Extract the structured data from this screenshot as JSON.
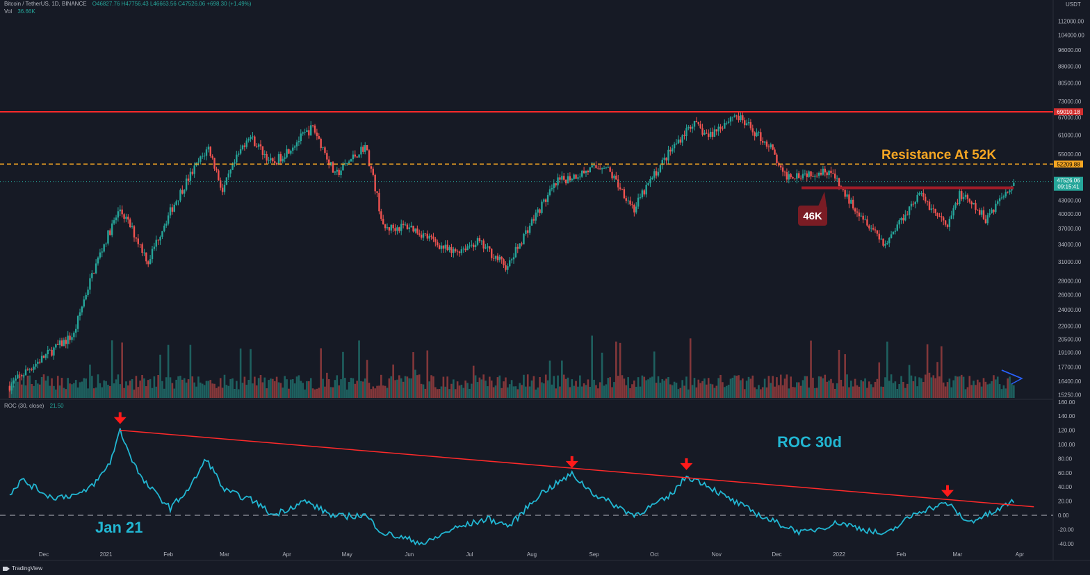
{
  "header": {
    "symbol": "Bitcoin / TetherUS, 1D, BINANCE",
    "ohlc": "O46827.76 H47756.43 L46663.56 C47526.06 +698.30 (+1.49%)",
    "vol_label": "Vol",
    "vol_value": "36.66K",
    "currency": "USDT",
    "roc_label": "ROC (30, close)",
    "roc_value": "21.50"
  },
  "branding": {
    "name": "TradingView"
  },
  "colors": {
    "background": "#161a25",
    "up": "#26a69a",
    "down": "#ef5350",
    "roc_line": "#22b7d3",
    "resistance": "#f5a623",
    "trendline": "#ff2a2a"
  },
  "annotations": {
    "resistance_text": "Resistance At 52K",
    "support_text": "46K",
    "roc_text": "ROC 30d",
    "jan_text": "Jan 21"
  },
  "price_tags": {
    "ath": "69010.18",
    "resistance": "52209.88",
    "current": "47526.06",
    "countdown": "09:15:41"
  },
  "price_axis": {
    "ticks": [
      {
        "label": "112000.00",
        "value": 112000
      },
      {
        "label": "104000.00",
        "value": 104000
      },
      {
        "label": "96000.00",
        "value": 96000
      },
      {
        "label": "88000.00",
        "value": 88000
      },
      {
        "label": "80500.00",
        "value": 80500
      },
      {
        "label": "73000.00",
        "value": 73000
      },
      {
        "label": "67000.00",
        "value": 67000
      },
      {
        "label": "61000.00",
        "value": 61000
      },
      {
        "label": "55000.00",
        "value": 55000
      },
      {
        "label": "43000.00",
        "value": 43000
      },
      {
        "label": "40000.00",
        "value": 40000
      },
      {
        "label": "37000.00",
        "value": 37000
      },
      {
        "label": "34000.00",
        "value": 34000
      },
      {
        "label": "31000.00",
        "value": 31000
      },
      {
        "label": "28000.00",
        "value": 28000
      },
      {
        "label": "26000.00",
        "value": 26000
      },
      {
        "label": "24000.00",
        "value": 24000
      },
      {
        "label": "22000.00",
        "value": 22000
      },
      {
        "label": "20500.00",
        "value": 20500
      },
      {
        "label": "19100.00",
        "value": 19100
      },
      {
        "label": "17700.00",
        "value": 17700
      },
      {
        "label": "16400.00",
        "value": 16400
      },
      {
        "label": "15250.00",
        "value": 15250
      }
    ]
  },
  "roc_axis": {
    "ticks": [
      "160.00",
      "140.00",
      "120.00",
      "100.00",
      "80.00",
      "60.00",
      "40.00",
      "20.00",
      "0.00",
      "-20.00",
      "-40.00"
    ]
  },
  "time_axis": {
    "labels": [
      "Dec",
      "2021",
      "Feb",
      "Mar",
      "Apr",
      "May",
      "Jun",
      "Jul",
      "Aug",
      "Sep",
      "Oct",
      "Nov",
      "Dec",
      "2022",
      "Feb",
      "Mar",
      "Apr"
    ]
  },
  "chart_data": [
    {
      "type": "candlestick",
      "title": "Bitcoin / TetherUS, 1D, BINANCE",
      "scale": "log",
      "ylim": [
        15250,
        115000
      ],
      "x_range": [
        "2020-11",
        "2022-03-29"
      ],
      "anchors": [
        {
          "date": "2020-11-14",
          "close": 16000
        },
        {
          "date": "2020-12-16",
          "close": 21000
        },
        {
          "date": "2021-01-08",
          "close": 41000
        },
        {
          "date": "2021-01-22",
          "close": 31000
        },
        {
          "date": "2021-02-21",
          "close": 57000
        },
        {
          "date": "2021-02-28",
          "close": 45000
        },
        {
          "date": "2021-03-13",
          "close": 61000
        },
        {
          "date": "2021-03-25",
          "close": 52000
        },
        {
          "date": "2021-04-14",
          "close": 63500
        },
        {
          "date": "2021-04-25",
          "close": 49000
        },
        {
          "date": "2021-05-10",
          "close": 57500
        },
        {
          "date": "2021-05-19",
          "close": 37000
        },
        {
          "date": "2021-06-01",
          "close": 37500
        },
        {
          "date": "2021-06-22",
          "close": 32500
        },
        {
          "date": "2021-07-05",
          "close": 34500
        },
        {
          "date": "2021-07-20",
          "close": 30000
        },
        {
          "date": "2021-08-14",
          "close": 47500
        },
        {
          "date": "2021-09-06",
          "close": 52000
        },
        {
          "date": "2021-09-21",
          "close": 41000
        },
        {
          "date": "2021-10-20",
          "close": 65000
        },
        {
          "date": "2021-10-28",
          "close": 60500
        },
        {
          "date": "2021-11-10",
          "close": 68000
        },
        {
          "date": "2021-11-28",
          "close": 57000
        },
        {
          "date": "2021-12-04",
          "close": 49000
        },
        {
          "date": "2021-12-27",
          "close": 50500
        },
        {
          "date": "2022-01-05",
          "close": 43500
        },
        {
          "date": "2022-01-24",
          "close": 34000
        },
        {
          "date": "2022-02-10",
          "close": 44500
        },
        {
          "date": "2022-02-24",
          "close": 37000
        },
        {
          "date": "2022-03-02",
          "close": 44500
        },
        {
          "date": "2022-03-15",
          "close": 39000
        },
        {
          "date": "2022-03-29",
          "close": 47526
        }
      ],
      "volume": {
        "label": "Vol",
        "last": "36.66K"
      },
      "levels": [
        {
          "name": "ATH",
          "value": 69010.18
        },
        {
          "name": "Resistance At 52K",
          "value": 52209.88
        },
        {
          "name": "46K",
          "value": 46000
        },
        {
          "name": "Current",
          "value": 47526.06
        }
      ]
    },
    {
      "type": "line",
      "title": "ROC (30, close)",
      "ylim": [
        -45,
        160
      ],
      "anchors": [
        {
          "date": "2020-11-14",
          "roc": 30
        },
        {
          "date": "2020-11-20",
          "roc": 50
        },
        {
          "date": "2020-12-05",
          "roc": 25
        },
        {
          "date": "2020-12-20",
          "roc": 30
        },
        {
          "date": "2020-12-28",
          "roc": 50
        },
        {
          "date": "2021-01-03",
          "roc": 75
        },
        {
          "date": "2021-01-08",
          "roc": 120
        },
        {
          "date": "2021-01-13",
          "roc": 85
        },
        {
          "date": "2021-01-19",
          "roc": 50
        },
        {
          "date": "2021-02-02",
          "roc": 10
        },
        {
          "date": "2021-02-12",
          "roc": 40
        },
        {
          "date": "2021-02-20",
          "roc": 80
        },
        {
          "date": "2021-03-01",
          "roc": 35
        },
        {
          "date": "2021-03-16",
          "roc": 20
        },
        {
          "date": "2021-03-25",
          "roc": 0
        },
        {
          "date": "2021-04-10",
          "roc": 20
        },
        {
          "date": "2021-04-25",
          "roc": -2
        },
        {
          "date": "2021-05-10",
          "roc": 0
        },
        {
          "date": "2021-05-19",
          "roc": -25
        },
        {
          "date": "2021-06-09",
          "roc": -40
        },
        {
          "date": "2021-06-22",
          "roc": -20
        },
        {
          "date": "2021-07-10",
          "roc": -5
        },
        {
          "date": "2021-07-21",
          "roc": -15
        },
        {
          "date": "2021-08-05",
          "roc": 30
        },
        {
          "date": "2021-08-21",
          "roc": 58
        },
        {
          "date": "2021-09-01",
          "roc": 30
        },
        {
          "date": "2021-09-21",
          "roc": 0
        },
        {
          "date": "2021-10-08",
          "roc": 25
        },
        {
          "date": "2021-10-17",
          "roc": 55
        },
        {
          "date": "2021-10-26",
          "roc": 45
        },
        {
          "date": "2021-11-06",
          "roc": 25
        },
        {
          "date": "2021-11-26",
          "roc": -5
        },
        {
          "date": "2021-12-14",
          "roc": -25
        },
        {
          "date": "2022-01-01",
          "roc": -10
        },
        {
          "date": "2022-01-24",
          "roc": -28
        },
        {
          "date": "2022-02-09",
          "roc": 5
        },
        {
          "date": "2022-02-24",
          "roc": 17
        },
        {
          "date": "2022-03-06",
          "roc": -10
        },
        {
          "date": "2022-03-20",
          "roc": 5
        },
        {
          "date": "2022-03-29",
          "roc": 21.5
        }
      ],
      "trendline": [
        {
          "date": "2021-01-08",
          "roc": 120
        },
        {
          "date": "2022-04-08",
          "roc": 12
        }
      ],
      "peak_markers": [
        "2021-01-08",
        "2021-08-21",
        "2021-10-17",
        "2022-02-24"
      ]
    }
  ]
}
